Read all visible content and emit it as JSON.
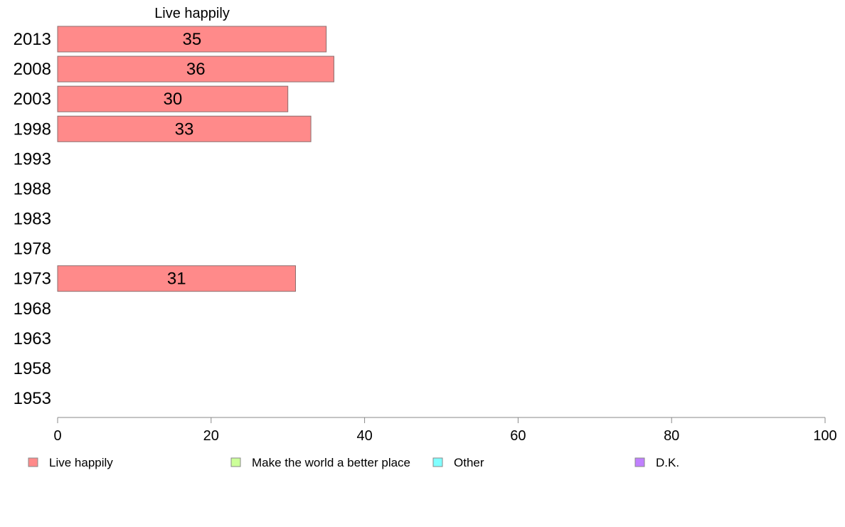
{
  "chart_data": {
    "type": "bar",
    "orientation": "horizontal",
    "title": "Live happily",
    "categories": [
      "2013",
      "2008",
      "2003",
      "1998",
      "1993",
      "1988",
      "1983",
      "1978",
      "1973",
      "1968",
      "1963",
      "1958",
      "1953"
    ],
    "series": [
      {
        "name": "Live happily",
        "values": [
          35,
          36,
          30,
          33,
          null,
          null,
          null,
          null,
          31,
          null,
          null,
          null,
          null
        ]
      }
    ],
    "xlim": [
      0,
      100
    ],
    "xticks": [
      0,
      20,
      40,
      60,
      80,
      100
    ],
    "grid": false,
    "legend": {
      "position": "bottom",
      "entries": [
        {
          "label": "Live happily",
          "color": "#ff8a8a"
        },
        {
          "label": "Make the world a better place",
          "color": "#ccff99"
        },
        {
          "label": "Other",
          "color": "#80ffff"
        },
        {
          "label": "D.K.",
          "color": "#c080ff"
        }
      ]
    },
    "bar_color": "#ff8a8a",
    "bar_stroke": "#8c6d6d",
    "axis_color": "#888888"
  }
}
